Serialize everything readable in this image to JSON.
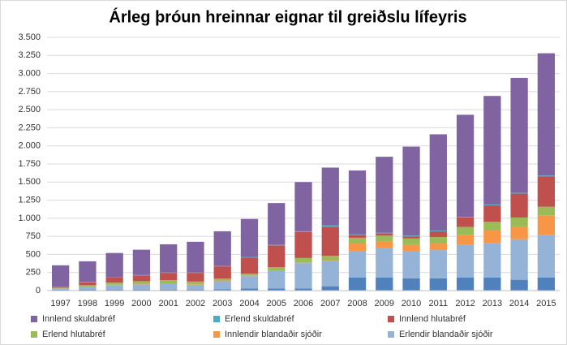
{
  "chart_data": {
    "type": "stacked_bar",
    "title": "Árleg þróun hreinnar eignar til greiðslu lífeyris",
    "categories": [
      "1997",
      "1998",
      "1999",
      "2000",
      "2001",
      "2002",
      "2003",
      "2004",
      "2005",
      "2006",
      "2007",
      "2008",
      "2009",
      "2010",
      "2011",
      "2012",
      "2013",
      "2014",
      "2015"
    ],
    "series": [
      {
        "color": "#4f81bd",
        "values": [
          10,
          15,
          15,
          15,
          15,
          15,
          20,
          30,
          30,
          30,
          60,
          180,
          180,
          170,
          170,
          180,
          180,
          150,
          180
        ]
      },
      {
        "name": "Erlendir blandaðir sjóðir",
        "color": "#95b3d7",
        "values": [
          20,
          40,
          60,
          70,
          75,
          65,
          110,
          170,
          240,
          350,
          350,
          370,
          410,
          380,
          390,
          450,
          480,
          560,
          590
        ]
      },
      {
        "name": "Innlendir blandaðir sjóðir",
        "color": "#f79646",
        "values": [
          0,
          0,
          5,
          5,
          5,
          5,
          5,
          5,
          5,
          10,
          10,
          100,
          90,
          80,
          90,
          140,
          170,
          170,
          270
        ]
      },
      {
        "name": "Erlend hlutabréf",
        "color": "#9bbb59",
        "values": [
          10,
          20,
          30,
          40,
          50,
          40,
          30,
          30,
          50,
          60,
          60,
          80,
          80,
          90,
          90,
          110,
          120,
          130,
          120
        ]
      },
      {
        "name": "Innlend hlutabréf",
        "color": "#c0504d",
        "values": [
          10,
          40,
          70,
          80,
          100,
          120,
          170,
          220,
          300,
          360,
          400,
          40,
          30,
          30,
          80,
          130,
          230,
          330,
          420
        ]
      },
      {
        "name": "Erlend skuldabréf",
        "color": "#4bacc6",
        "values": [
          5,
          5,
          5,
          5,
          5,
          5,
          5,
          10,
          10,
          10,
          20,
          10,
          10,
          10,
          10,
          10,
          10,
          10,
          10
        ]
      },
      {
        "name": "Innlend skuldabréf",
        "color": "#8064a2",
        "values": [
          295,
          285,
          335,
          350,
          390,
          425,
          480,
          525,
          575,
          680,
          800,
          880,
          1050,
          1230,
          1330,
          1410,
          1500,
          1590,
          1690
        ]
      }
    ],
    "ylim": [
      0,
      3500
    ],
    "yticks": [
      0,
      {
        "value": 250,
        "label": "250"
      },
      {
        "value": 500,
        "label": "500"
      },
      {
        "value": 750,
        "label": "750"
      },
      {
        "value": 1000,
        "label": "1.000"
      },
      {
        "value": 1250,
        "label": "1.250"
      },
      {
        "value": 1500,
        "label": "1.500"
      },
      {
        "value": 1750,
        "label": "1.750"
      },
      {
        "value": 2000,
        "label": "2.000"
      },
      {
        "value": 2250,
        "label": "2.250"
      },
      {
        "value": 2500,
        "label": "2.500"
      },
      {
        "value": 2750,
        "label": "2.750"
      },
      {
        "value": 3000,
        "label": "3.000"
      },
      {
        "value": 3250,
        "label": "3.250"
      },
      {
        "value": 3500,
        "label": "3.500"
      }
    ],
    "grid": true
  }
}
